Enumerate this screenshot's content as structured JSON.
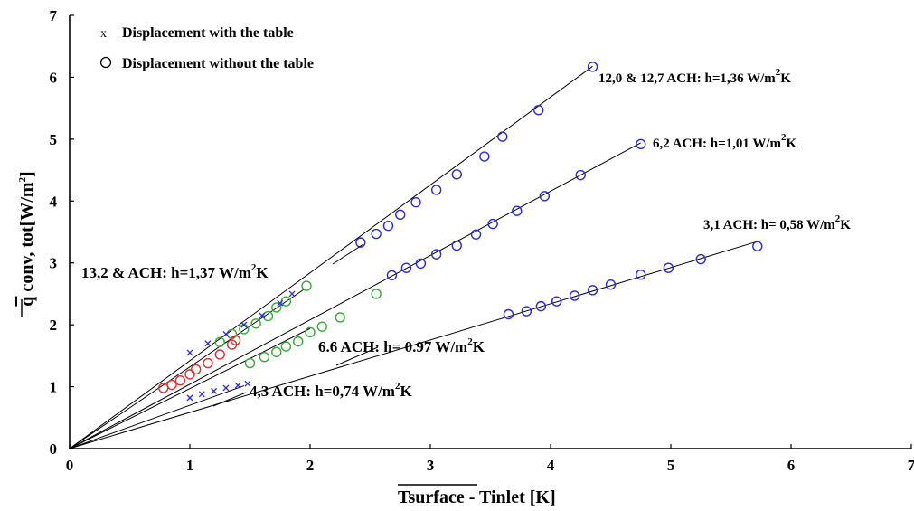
{
  "chart_data": {
    "type": "scatter",
    "xlabel_parts": {
      "overlined": "Tsurface",
      "rest": " - Tinlet [K]"
    },
    "ylabel_parts": {
      "overlined": "q",
      "rest": " conv, tot[W/m",
      "sup": "2",
      "end": "]"
    },
    "xlim": [
      0,
      7
    ],
    "ylim": [
      0,
      7
    ],
    "x_ticks": [
      "0",
      "1",
      "2",
      "3",
      "4",
      "5",
      "6",
      "7"
    ],
    "y_ticks": [
      "0",
      "1",
      "2",
      "3",
      "4",
      "5",
      "6",
      "7"
    ],
    "grid": false,
    "legend": {
      "placement": "top-left",
      "entries": [
        {
          "symbol": "x",
          "label": "Displacement with the table"
        },
        {
          "symbol": "o",
          "label": "Displacement without the table"
        }
      ]
    },
    "colors": {
      "blue": "#2a2ad8",
      "green": "#3aa83a",
      "red": "#e03030",
      "line": "#000000"
    },
    "fits": [
      {
        "slope": 1.42,
        "x_end": 4.35
      },
      {
        "slope": 1.04,
        "x_end": 4.75
      },
      {
        "slope": 0.585,
        "x_end": 5.7
      },
      {
        "slope": 1.32,
        "x_end": 1.95
      },
      {
        "slope": 0.97,
        "x_end": 2.0
      },
      {
        "slope": 0.7,
        "x_end": 1.45
      }
    ],
    "annotations": [
      {
        "id": "a1",
        "pre": "12,0 & 12,7 ACH: h=1,36 W/m",
        "sup": "2",
        "post": "K",
        "big": false
      },
      {
        "id": "a2",
        "pre": "6,2 ACH: h=1,01 W/m",
        "sup": "2",
        "post": "K",
        "big": false
      },
      {
        "id": "a3",
        "pre": "3,1 ACH: h= 0,58 W/m",
        "sup": "2",
        "post": "K",
        "big": false
      },
      {
        "id": "a4",
        "pre": "13,2 & ACH: h=1,37 W/m",
        "sup": "2",
        "post": "K",
        "big": true
      },
      {
        "id": "a5",
        "pre": "6.6 ACH: h= 0.97 W/m",
        "sup": "2",
        "post": "K",
        "big": true
      },
      {
        "id": "a6",
        "pre": "4,3 ACH: h=0,74 W/m",
        "sup": "2",
        "post": "K",
        "big": true
      }
    ],
    "series": [
      {
        "marker": "o",
        "color": "blue",
        "points": [
          [
            2.42,
            3.33
          ],
          [
            2.55,
            3.47
          ],
          [
            2.65,
            3.6
          ],
          [
            2.75,
            3.78
          ],
          [
            2.88,
            3.98
          ],
          [
            3.05,
            4.18
          ],
          [
            3.22,
            4.43
          ],
          [
            3.45,
            4.72
          ],
          [
            3.6,
            5.04
          ],
          [
            3.9,
            5.47
          ],
          [
            4.35,
            6.17
          ]
        ]
      },
      {
        "marker": "o",
        "color": "blue",
        "points": [
          [
            2.68,
            2.8
          ],
          [
            2.8,
            2.92
          ],
          [
            2.92,
            2.99
          ],
          [
            3.05,
            3.14
          ],
          [
            3.22,
            3.28
          ],
          [
            3.38,
            3.46
          ],
          [
            3.52,
            3.63
          ],
          [
            3.72,
            3.84
          ],
          [
            3.95,
            4.08
          ],
          [
            4.25,
            4.42
          ],
          [
            4.75,
            4.92
          ]
        ]
      },
      {
        "marker": "o",
        "color": "blue",
        "points": [
          [
            3.65,
            2.17
          ],
          [
            3.8,
            2.22
          ],
          [
            3.92,
            2.3
          ],
          [
            4.05,
            2.38
          ],
          [
            4.2,
            2.47
          ],
          [
            4.35,
            2.56
          ],
          [
            4.5,
            2.65
          ],
          [
            4.75,
            2.81
          ],
          [
            4.98,
            2.92
          ],
          [
            5.25,
            3.06
          ],
          [
            5.72,
            3.27
          ]
        ]
      },
      {
        "marker": "o",
        "color": "green",
        "points": [
          [
            1.25,
            1.72
          ],
          [
            1.35,
            1.85
          ],
          [
            1.45,
            1.93
          ],
          [
            1.55,
            2.02
          ],
          [
            1.65,
            2.14
          ],
          [
            1.72,
            2.28
          ],
          [
            1.8,
            2.38
          ],
          [
            1.97,
            2.63
          ]
        ]
      },
      {
        "marker": "o",
        "color": "green",
        "points": [
          [
            1.5,
            1.38
          ],
          [
            1.62,
            1.48
          ],
          [
            1.72,
            1.56
          ],
          [
            1.8,
            1.65
          ],
          [
            1.9,
            1.73
          ],
          [
            2.0,
            1.88
          ],
          [
            2.1,
            1.97
          ],
          [
            2.25,
            2.12
          ],
          [
            2.55,
            2.5
          ]
        ]
      },
      {
        "marker": "o",
        "color": "red",
        "points": [
          [
            0.78,
            0.98
          ],
          [
            0.85,
            1.03
          ],
          [
            0.92,
            1.1
          ],
          [
            1.0,
            1.2
          ],
          [
            1.05,
            1.28
          ],
          [
            1.15,
            1.38
          ],
          [
            1.25,
            1.52
          ],
          [
            1.35,
            1.68
          ],
          [
            1.38,
            1.75
          ]
        ]
      },
      {
        "marker": "x",
        "color": "blue",
        "points": [
          [
            1.0,
            0.82
          ],
          [
            1.1,
            0.88
          ],
          [
            1.2,
            0.93
          ],
          [
            1.3,
            0.98
          ],
          [
            1.4,
            1.02
          ],
          [
            1.48,
            1.05
          ],
          [
            1.0,
            1.55
          ],
          [
            1.15,
            1.7
          ],
          [
            1.3,
            1.85
          ],
          [
            1.45,
            2.0
          ],
          [
            1.6,
            2.15
          ],
          [
            1.75,
            2.35
          ],
          [
            1.85,
            2.5
          ]
        ]
      }
    ]
  }
}
